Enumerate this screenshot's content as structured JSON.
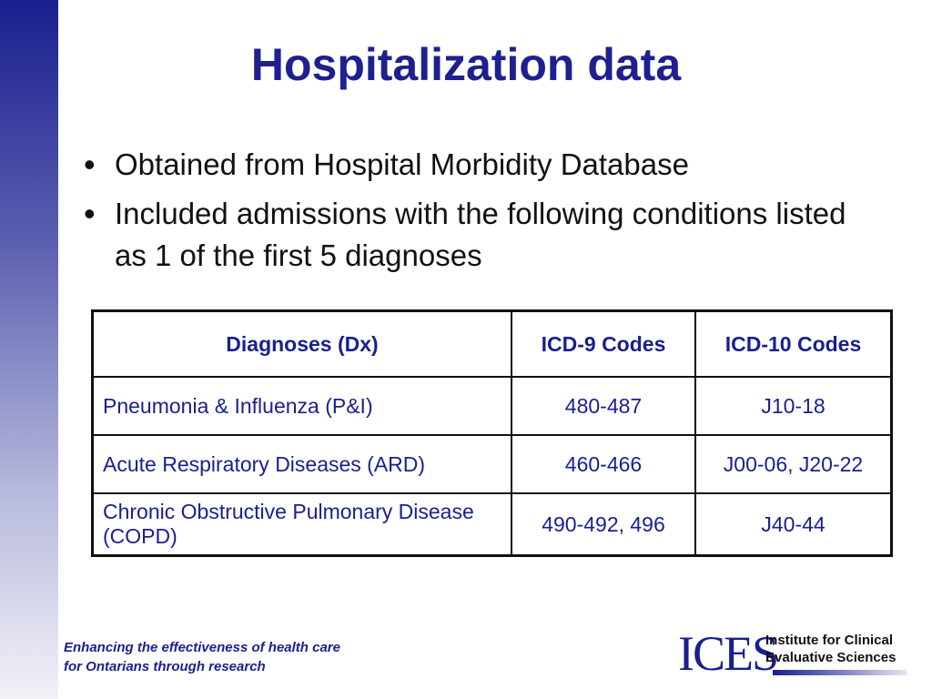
{
  "slide": {
    "title": "Hospitalization data",
    "bullets": [
      "Obtained from Hospital Morbidity Database",
      "Included admissions with the following conditions listed as 1 of the first 5 diagnoses"
    ],
    "bullet_symbol": "•",
    "table": {
      "headers": [
        "Diagnoses (Dx)",
        "ICD-9 Codes",
        "ICD-10 Codes"
      ],
      "rows": [
        [
          "Pneumonia & Influenza (P&I)",
          "480-487",
          "J10-18"
        ],
        [
          "Acute Respiratory Diseases (ARD)",
          "460-466",
          "J00-06, J20-22"
        ],
        [
          "Chronic Obstructive Pulmonary Disease (COPD)",
          "490-492, 496",
          "J40-44"
        ]
      ]
    },
    "footer": {
      "tagline_line1": "Enhancing the effectiveness of health care",
      "tagline_line2": "for Ontarians through research",
      "logo_mark": "ICES",
      "logo_line1": "Institute for Clinical",
      "logo_line2": "Evaluative Sciences"
    },
    "colors": {
      "title": "#1f1f8f",
      "table_text": "#1a1f8f",
      "side_bar_top": "#1a1f8f",
      "side_bar_bottom": "#f2f2f8"
    }
  }
}
